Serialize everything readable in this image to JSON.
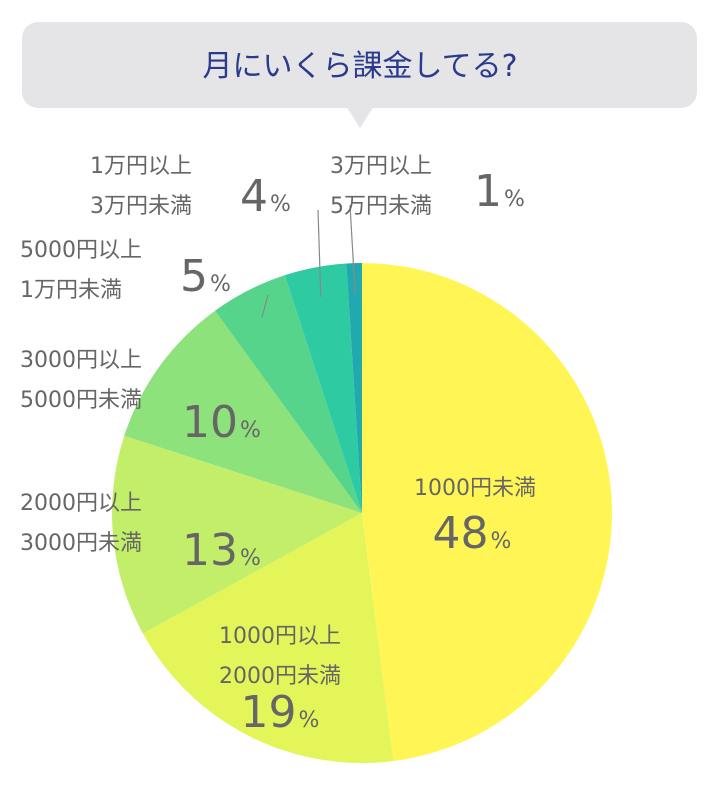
{
  "title": "月にいくら課金してる?",
  "chart_data": {
    "type": "pie",
    "title": "月にいくら課金してる?",
    "percent_sign": "%",
    "slices": [
      {
        "lines": [
          "1000円未満"
        ],
        "value": 48,
        "color": "#fff656"
      },
      {
        "lines": [
          "1000円以上",
          "2000円未満"
        ],
        "value": 19,
        "color": "#e4f55a"
      },
      {
        "lines": [
          "2000円以上",
          "3000円未満"
        ],
        "value": 13,
        "color": "#c2ee6a"
      },
      {
        "lines": [
          "3000円以上",
          "5000円未満"
        ],
        "value": 10,
        "color": "#8de27c"
      },
      {
        "lines": [
          "5000円以上",
          "1万円未満"
        ],
        "value": 5,
        "color": "#56d48c"
      },
      {
        "lines": [
          "1万円以上",
          "3万円未満"
        ],
        "value": 4,
        "color": "#2ecba3"
      },
      {
        "lines": [
          "3万円以上",
          "5万円未満"
        ],
        "value": 1,
        "color": "#22a9b0"
      }
    ],
    "bubble_color": "#e5e5e7"
  }
}
